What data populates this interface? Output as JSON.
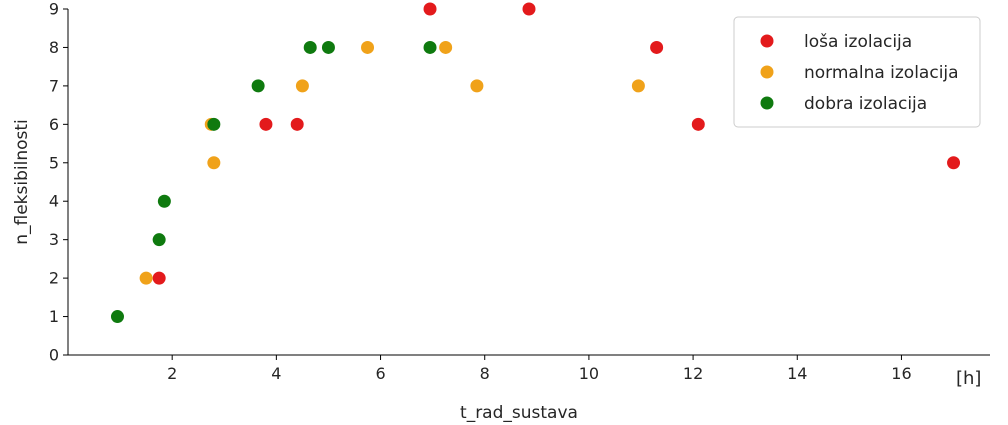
{
  "chart_data": {
    "type": "scatter",
    "title": "",
    "xlabel": "t_rad_sustava",
    "ylabel": "n_fleksibilnosti",
    "x_unit_label": "[h]",
    "xlim": [
      0,
      17.7
    ],
    "ylim": [
      0,
      9
    ],
    "xticks": [
      2,
      4,
      6,
      8,
      10,
      12,
      14,
      16
    ],
    "yticks": [
      0,
      1,
      2,
      3,
      4,
      5,
      6,
      7,
      8,
      9
    ],
    "grid": false,
    "legend_position": "top-right",
    "series": [
      {
        "name": "loša izolacija",
        "color": "#e31a1c",
        "points": [
          {
            "x": 1.75,
            "y": 2
          },
          {
            "x": 3.8,
            "y": 6
          },
          {
            "x": 4.4,
            "y": 6
          },
          {
            "x": 6.95,
            "y": 9
          },
          {
            "x": 8.85,
            "y": 9
          },
          {
            "x": 11.3,
            "y": 8
          },
          {
            "x": 12.1,
            "y": 6
          },
          {
            "x": 17.0,
            "y": 5
          }
        ]
      },
      {
        "name": "normalna izolacija",
        "color": "#f0a21a",
        "points": [
          {
            "x": 1.5,
            "y": 2
          },
          {
            "x": 2.75,
            "y": 6
          },
          {
            "x": 2.8,
            "y": 5
          },
          {
            "x": 4.5,
            "y": 7
          },
          {
            "x": 5.75,
            "y": 8
          },
          {
            "x": 7.25,
            "y": 8
          },
          {
            "x": 7.85,
            "y": 7
          },
          {
            "x": 10.95,
            "y": 7
          }
        ]
      },
      {
        "name": "dobra izolacija",
        "color": "#0f7a0f",
        "points": [
          {
            "x": 0.95,
            "y": 1
          },
          {
            "x": 1.75,
            "y": 3
          },
          {
            "x": 1.85,
            "y": 4
          },
          {
            "x": 2.8,
            "y": 6
          },
          {
            "x": 3.65,
            "y": 7
          },
          {
            "x": 4.65,
            "y": 8
          },
          {
            "x": 5.0,
            "y": 8
          },
          {
            "x": 6.95,
            "y": 8
          }
        ]
      }
    ]
  }
}
